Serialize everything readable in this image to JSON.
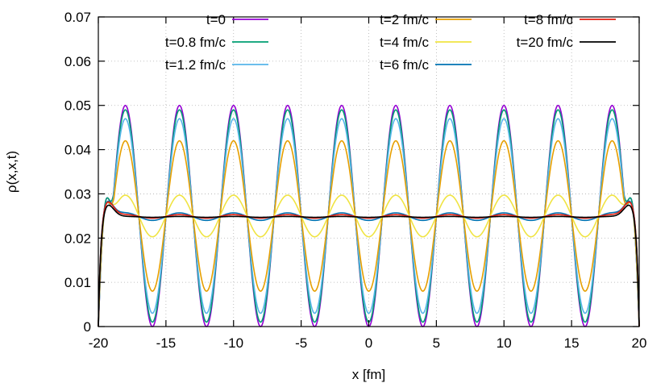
{
  "chart_data": {
    "type": "line",
    "title": "",
    "xlabel": "x [fm]",
    "ylabel": "ρ(x,x,t)",
    "xlim": [
      -20,
      20
    ],
    "ylim": [
      0,
      0.07
    ],
    "xticks": [
      -20,
      -15,
      -10,
      -5,
      0,
      5,
      10,
      15,
      20
    ],
    "xtick_labels": [
      "-20",
      "-15",
      "-10",
      "-5",
      "0",
      "5",
      "10",
      "15",
      "20"
    ],
    "yticks": [
      0,
      0.01,
      0.02,
      0.03,
      0.04,
      0.05,
      0.06,
      0.07
    ],
    "ytick_labels": [
      "0",
      "0.01",
      "0.02",
      "0.03",
      "0.04",
      "0.05",
      "0.06",
      "0.07"
    ],
    "grid": true,
    "legend_position": "top",
    "oscillation": {
      "peaks_x": [
        -18,
        -14,
        -10,
        -6,
        -2,
        2,
        6,
        10,
        14,
        18
      ],
      "period_fm": 4,
      "mean_density": 0.025
    },
    "series": [
      {
        "name": "t=0",
        "color": "#9400d3",
        "peak": 0.05,
        "trough": 0.0,
        "edge_peak": 0.03
      },
      {
        "name": "t=0.8 fm/c",
        "color": "#009e73",
        "peak": 0.049,
        "trough": 0.001,
        "edge_peak": 0.03
      },
      {
        "name": "t=1.2 fm/c",
        "color": "#56b4e9",
        "peak": 0.047,
        "trough": 0.003,
        "edge_peak": 0.029
      },
      {
        "name": "t=2 fm/c",
        "color": "#e69f00",
        "peak": 0.042,
        "trough": 0.008,
        "edge_peak": 0.029
      },
      {
        "name": "t=4 fm/c",
        "color": "#f0e442",
        "peak": 0.0297,
        "trough": 0.0203,
        "edge_peak": 0.029
      },
      {
        "name": "t=6 fm/c",
        "color": "#0072b2",
        "peak": 0.0257,
        "trough": 0.024,
        "edge_peak": 0.029
      },
      {
        "name": "t=8 fm/c",
        "color": "#e51e10",
        "peak": 0.0253,
        "trough": 0.0245,
        "edge_peak": 0.0288
      },
      {
        "name": "t=20 fm/c",
        "color": "#000000",
        "peak": 0.0249,
        "trough": 0.0247,
        "edge_peak": 0.028
      }
    ]
  }
}
